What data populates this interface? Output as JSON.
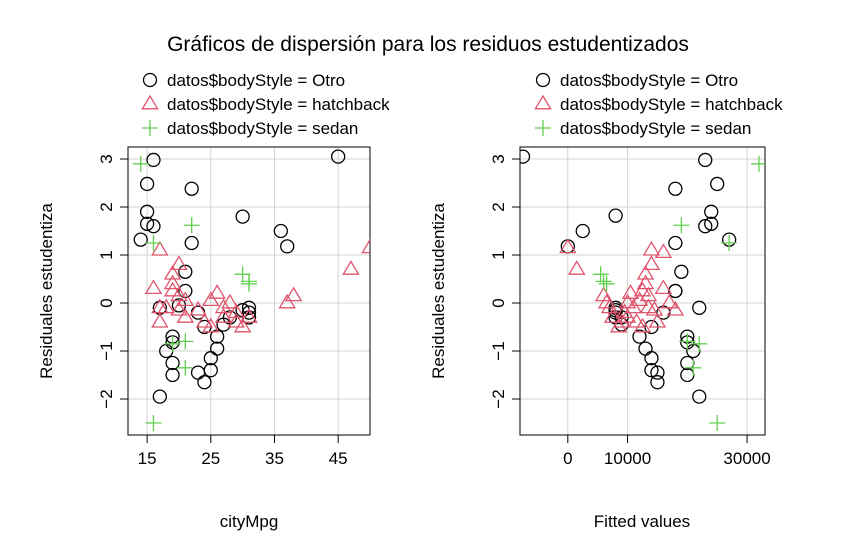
{
  "title": "Gráficos de dispersión para los residuos estudentizados",
  "legend": {
    "entries": [
      {
        "label": "datos$bodyStyle = Otro",
        "symbol": "circle",
        "color": "#000000"
      },
      {
        "label": "datos$bodyStyle = hatchback",
        "symbol": "triangle",
        "color": "#DF536B"
      },
      {
        "label": "datos$bodyStyle = sedan",
        "symbol": "plus",
        "color": "#61D04F"
      }
    ]
  },
  "chart_data": [
    {
      "type": "scatter",
      "xlabel": "cityMpg",
      "ylabel": "Residuales estudentiza",
      "xlim": [
        12,
        50
      ],
      "ylim": [
        -2.75,
        3.25
      ],
      "xticks": [
        15,
        25,
        35,
        45
      ],
      "yticks": [
        -2,
        -1,
        0,
        1,
        2,
        3
      ],
      "grid": true,
      "series": [
        {
          "name": "datos$bodyStyle = Otro",
          "marker": "circle",
          "color": "#000000",
          "points": [
            [
              14,
              1.32
            ],
            [
              15,
              1.9
            ],
            [
              15,
              1.65
            ],
            [
              15,
              2.48
            ],
            [
              16,
              2.98
            ],
            [
              16,
              1.6
            ],
            [
              17,
              -1.95
            ],
            [
              17,
              -0.1
            ],
            [
              18,
              -1.0
            ],
            [
              19,
              -1.25
            ],
            [
              19,
              -1.5
            ],
            [
              19,
              -0.7
            ],
            [
              19,
              -0.82
            ],
            [
              20,
              -0.05
            ],
            [
              21,
              0.25
            ],
            [
              21,
              0.65
            ],
            [
              22,
              2.38
            ],
            [
              22,
              1.25
            ],
            [
              23,
              -0.2
            ],
            [
              23,
              -1.45
            ],
            [
              24,
              -1.65
            ],
            [
              24,
              -0.5
            ],
            [
              25,
              -1.4
            ],
            [
              25,
              -1.15
            ],
            [
              26,
              -0.95
            ],
            [
              26,
              -0.7
            ],
            [
              27,
              -0.45
            ],
            [
              28,
              -0.3
            ],
            [
              30,
              1.8
            ],
            [
              30,
              -0.15
            ],
            [
              31,
              -0.2
            ],
            [
              31,
              -0.3
            ],
            [
              31,
              -0.1
            ],
            [
              36,
              1.5
            ],
            [
              37,
              1.18
            ],
            [
              45,
              3.05
            ]
          ]
        },
        {
          "name": "datos$bodyStyle = hatchback",
          "marker": "triangle",
          "color": "#DF536B",
          "points": [
            [
              16,
              0.3
            ],
            [
              17,
              1.1
            ],
            [
              17,
              -0.4
            ],
            [
              17,
              -0.1
            ],
            [
              18,
              -0.1
            ],
            [
              19,
              0.6
            ],
            [
              19,
              0.4
            ],
            [
              19,
              0.25
            ],
            [
              20,
              0.8
            ],
            [
              20,
              0.15
            ],
            [
              20,
              -0.15
            ],
            [
              21,
              0.05
            ],
            [
              21,
              -0.3
            ],
            [
              23,
              -0.15
            ],
            [
              24,
              -0.4
            ],
            [
              25,
              -0.5
            ],
            [
              25,
              0.05
            ],
            [
              26,
              0.2
            ],
            [
              27,
              -0.1
            ],
            [
              27,
              -0.3
            ],
            [
              28,
              0.0
            ],
            [
              29,
              -0.4
            ],
            [
              29,
              -0.2
            ],
            [
              30,
              -0.5
            ],
            [
              31,
              -0.3
            ],
            [
              37,
              0.0
            ],
            [
              38,
              0.15
            ],
            [
              47,
              0.7
            ],
            [
              50,
              1.15
            ]
          ]
        },
        {
          "name": "datos$bodyStyle = sedan",
          "marker": "plus",
          "color": "#61D04F",
          "points": [
            [
              14,
              2.9
            ],
            [
              16,
              1.25
            ],
            [
              16,
              -2.5
            ],
            [
              19,
              -0.85
            ],
            [
              21,
              -0.8
            ],
            [
              21,
              -1.35
            ],
            [
              22,
              1.62
            ],
            [
              30,
              0.6
            ],
            [
              31,
              0.4
            ],
            [
              31,
              0.45
            ]
          ]
        }
      ]
    },
    {
      "type": "scatter",
      "xlabel": "Fitted values",
      "ylabel": "Residuales estudentiza",
      "xlim": [
        -8000,
        33000
      ],
      "ylim": [
        -2.75,
        3.25
      ],
      "xticks": [
        0,
        10000,
        30000
      ],
      "xtick_labels": [
        "0",
        "10000",
        "30000"
      ],
      "yticks": [
        -2,
        -1,
        0,
        1,
        2,
        3
      ],
      "grid": true,
      "series": [
        {
          "name": "datos$bodyStyle = Otro",
          "marker": "circle",
          "color": "#000000",
          "points": [
            [
              -7500,
              3.05
            ],
            [
              0,
              1.18
            ],
            [
              2500,
              1.5
            ],
            [
              8000,
              1.82
            ],
            [
              8000,
              -0.15
            ],
            [
              8000,
              -0.2
            ],
            [
              8000,
              -0.3
            ],
            [
              8000,
              -0.1
            ],
            [
              9000,
              -0.3
            ],
            [
              9000,
              -0.45
            ],
            [
              12000,
              -0.7
            ],
            [
              13000,
              -0.95
            ],
            [
              14000,
              -1.4
            ],
            [
              14000,
              -1.15
            ],
            [
              14000,
              -0.5
            ],
            [
              15000,
              -1.65
            ],
            [
              15000,
              -1.45
            ],
            [
              16000,
              -0.2
            ],
            [
              18000,
              0.25
            ],
            [
              18000,
              0.25
            ],
            [
              18000,
              2.38
            ],
            [
              18000,
              1.25
            ],
            [
              19000,
              0.65
            ],
            [
              20000,
              -1.25
            ],
            [
              20000,
              -1.5
            ],
            [
              20000,
              -0.82
            ],
            [
              20000,
              -0.7
            ],
            [
              21000,
              -1.0
            ],
            [
              22000,
              -0.1
            ],
            [
              22000,
              -1.95
            ],
            [
              23000,
              2.98
            ],
            [
              23000,
              1.6
            ],
            [
              24000,
              1.9
            ],
            [
              24000,
              1.65
            ],
            [
              25000,
              2.48
            ],
            [
              27000,
              1.32
            ]
          ]
        },
        {
          "name": "datos$bodyStyle = hatchback",
          "marker": "triangle",
          "color": "#DF536B",
          "points": [
            [
              0,
              1.15
            ],
            [
              1500,
              0.7
            ],
            [
              6000,
              0.15
            ],
            [
              6500,
              0.0
            ],
            [
              7000,
              -0.1
            ],
            [
              7500,
              -0.3
            ],
            [
              8500,
              -0.5
            ],
            [
              9000,
              -0.4
            ],
            [
              9500,
              -0.2
            ],
            [
              10000,
              0.0
            ],
            [
              10000,
              -0.3
            ],
            [
              10500,
              0.2
            ],
            [
              11000,
              -0.1
            ],
            [
              11500,
              -0.4
            ],
            [
              12000,
              0.05
            ],
            [
              12500,
              -0.5
            ],
            [
              12500,
              0.25
            ],
            [
              13000,
              0.4
            ],
            [
              13000,
              0.6
            ],
            [
              13500,
              0.15
            ],
            [
              13500,
              -0.1
            ],
            [
              14000,
              0.8
            ],
            [
              14000,
              1.1
            ],
            [
              14500,
              -0.15
            ],
            [
              15000,
              -0.4
            ],
            [
              16000,
              1.05
            ],
            [
              16000,
              0.3
            ],
            [
              17000,
              0.0
            ],
            [
              18000,
              -0.15
            ]
          ]
        },
        {
          "name": "datos$bodyStyle = sedan",
          "marker": "plus",
          "color": "#61D04F",
          "points": [
            [
              5500,
              0.6
            ],
            [
              6000,
              0.45
            ],
            [
              6500,
              0.4
            ],
            [
              19000,
              1.62
            ],
            [
              20000,
              -0.8
            ],
            [
              21000,
              -1.35
            ],
            [
              22000,
              -0.85
            ],
            [
              25000,
              -2.5
            ],
            [
              27000,
              1.25
            ],
            [
              32000,
              2.9
            ]
          ]
        }
      ]
    }
  ]
}
